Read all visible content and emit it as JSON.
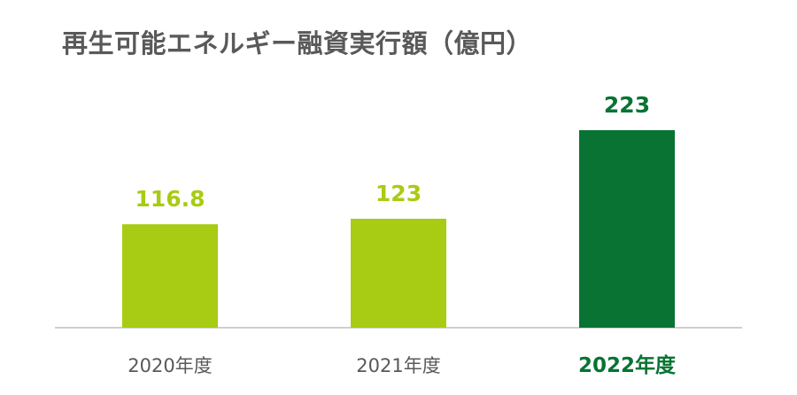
{
  "chart_data": {
    "type": "bar",
    "title": "再生可能エネルギー融資実行額（億円）",
    "categories": [
      "2020年度",
      "2021年度",
      "2022年度"
    ],
    "values": [
      116.8,
      123,
      223
    ],
    "value_labels": [
      "116.8",
      "123",
      "223"
    ],
    "highlight_index": 2,
    "colors": {
      "bar_default": "#A8CB13",
      "bar_highlight": "#087333",
      "label_default": "#A8CB13",
      "label_highlight": "#087333",
      "category_default": "#595959",
      "category_highlight": "#087333",
      "baseline": "#BFBFBF"
    },
    "xlabel": "",
    "ylabel": "",
    "grid": false,
    "legend": "none"
  }
}
